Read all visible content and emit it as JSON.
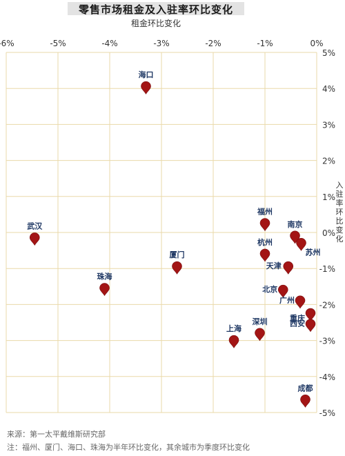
{
  "chart_data": {
    "type": "scatter",
    "title": "零售市场租金及入驻率环比变化",
    "xlabel": "租金环比变化",
    "ylabel": "入驻率环比变化",
    "xlim": [
      -6,
      0
    ],
    "ylim": [
      -5,
      5
    ],
    "x_ticks": [
      "-6%",
      "-5%",
      "-4%",
      "-3%",
      "-2%",
      "-1%",
      "0%"
    ],
    "y_ticks": [
      "5%",
      "4%",
      "3%",
      "2%",
      "1%",
      "0%",
      "-1%",
      "-2%",
      "-3%",
      "-4%",
      "-5%"
    ],
    "grid": true,
    "marker_color": "#a31515",
    "points": [
      {
        "city": "海口",
        "x": -3.3,
        "y": 4.0
      },
      {
        "city": "武汉",
        "x": -5.45,
        "y": -0.2
      },
      {
        "city": "珠海",
        "x": -4.1,
        "y": -1.6
      },
      {
        "city": "厦门",
        "x": -2.7,
        "y": -1.0
      },
      {
        "city": "福州",
        "x": -1.0,
        "y": 0.2
      },
      {
        "city": "杭州",
        "x": -1.0,
        "y": -0.65
      },
      {
        "city": "南京",
        "x": -0.42,
        "y": -0.15
      },
      {
        "city": "苏州",
        "x": -0.3,
        "y": -0.35
      },
      {
        "city": "天津",
        "x": -0.55,
        "y": -1.0
      },
      {
        "city": "北京",
        "x": -0.65,
        "y": -1.65
      },
      {
        "city": "广州",
        "x": -0.32,
        "y": -1.95
      },
      {
        "city": "重庆",
        "x": -0.12,
        "y": -2.3
      },
      {
        "city": "西安",
        "x": -0.12,
        "y": -2.6
      },
      {
        "city": "深圳",
        "x": -1.1,
        "y": -2.85
      },
      {
        "city": "上海",
        "x": -1.6,
        "y": -3.05
      },
      {
        "city": "成都",
        "x": -0.22,
        "y": -4.7
      }
    ]
  },
  "notes": {
    "source": "来源：第一太平戴维斯研究部",
    "note": "注：福州、厦门、海口、珠海为半年环比变化，其余城市为季度环比变化"
  }
}
